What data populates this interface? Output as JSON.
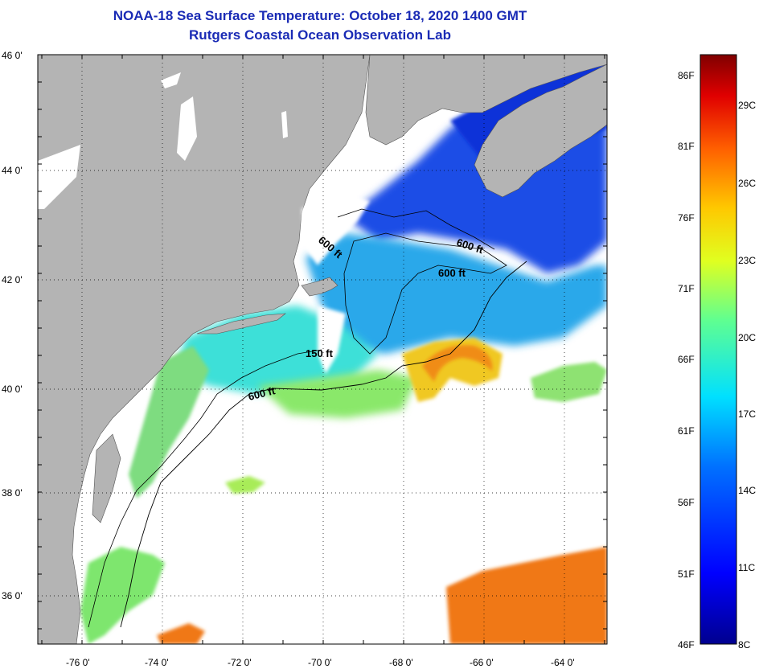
{
  "title": {
    "line1": "NOAA-18 Sea Surface Temperature:  October 18, 2020 1400 GMT",
    "line2": "Rutgers Coastal Ocean Observation Lab"
  },
  "map": {
    "lat_labels": [
      "46 0'",
      "44 0'",
      "42 0'",
      "40 0'",
      "38 0'",
      "36 0'"
    ],
    "lon_labels": [
      "-76 0'",
      "-74 0'",
      "-72 0'",
      "-70 0'",
      "-68 0'",
      "-66 0'",
      "-64 0'"
    ],
    "contour_labels": [
      "600 ft",
      "600 ft",
      "600 ft",
      "150 ft",
      "600 ft"
    ],
    "colors": {
      "land": "#b4b4b4",
      "cloud": "#ffffff",
      "cold": "#0a35e0",
      "mid": "#1fd0e8",
      "warm": "#e8d420",
      "hot": "#f0780f"
    }
  },
  "colorbar": {
    "fahrenheit": [
      "86F",
      "81F",
      "76F",
      "71F",
      "66F",
      "61F",
      "56F",
      "51F",
      "46F"
    ],
    "celsius": [
      "29C",
      "26C",
      "23C",
      "20C",
      "17C",
      "14C",
      "11C",
      "8C"
    ],
    "range_f": [
      46,
      88
    ]
  }
}
